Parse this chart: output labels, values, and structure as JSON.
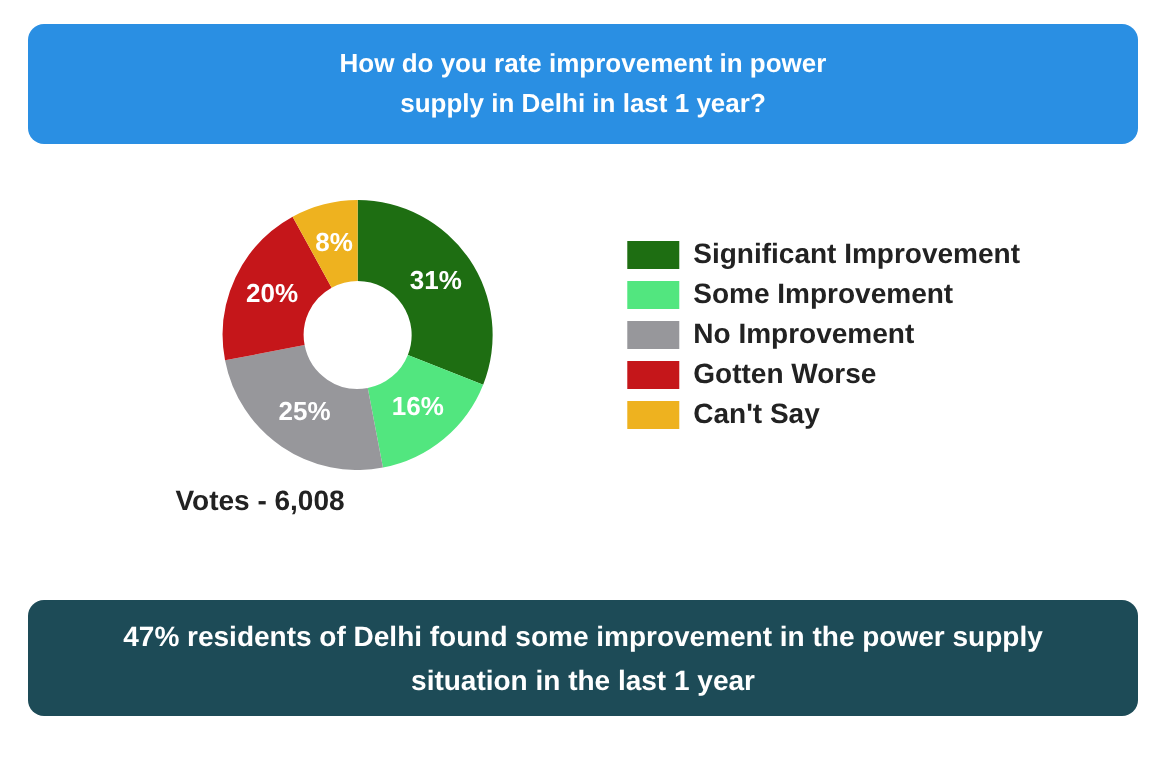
{
  "chart_data": {
    "type": "donut",
    "title": "How do you rate improvement in power supply in Delhi in last 1 year?",
    "categories": [
      "Significant Improvement",
      "Some Improvement",
      "No Improvement",
      "Gotten Worse",
      "Can't Say"
    ],
    "values": [
      31,
      16,
      25,
      20,
      8
    ],
    "colors": [
      "#1e6e12",
      "#52e67f",
      "#97979b",
      "#c5161a",
      "#eeb21f"
    ],
    "value_labels": [
      "31%",
      "16%",
      "25%",
      "20%",
      "8%"
    ],
    "legend": "right",
    "annotations": [
      "Votes - 6,008",
      "47% residents of Delhi found some improvement in the power supply situation in the last 1 year"
    ]
  }
}
